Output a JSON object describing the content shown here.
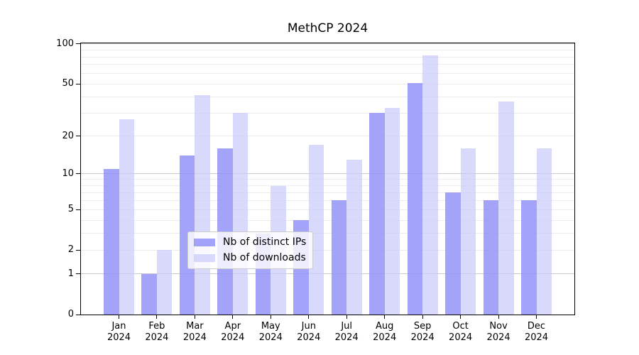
{
  "chart_data": {
    "type": "bar",
    "title": "MethCP 2024",
    "categories": [
      "Jan",
      "Feb",
      "Mar",
      "Apr",
      "May",
      "Jun",
      "Jul",
      "Aug",
      "Sep",
      "Oct",
      "Nov",
      "Dec"
    ],
    "category_year": "2024",
    "series": [
      {
        "name": "Nb of distinct IPs",
        "color": "rgba(147,147,248,0.85)",
        "values": [
          11,
          1,
          14,
          16,
          3,
          4,
          6,
          30,
          51,
          7,
          6,
          6
        ]
      },
      {
        "name": "Nb of downloads",
        "color": "rgba(202,202,250,0.72)",
        "values": [
          27,
          2,
          41,
          30,
          8,
          17,
          13,
          33,
          82,
          16,
          37,
          16
        ]
      }
    ],
    "yscale": "log1p",
    "ylim": [
      0,
      101
    ],
    "ytick_values": [
      0,
      1,
      2,
      5,
      10,
      20,
      50,
      100
    ],
    "ytick_labels": [
      "0",
      "1",
      "2",
      "5",
      "10",
      "20",
      "50",
      "100"
    ],
    "major_gridlines": [
      1,
      10,
      100
    ],
    "minor_gridlines": [
      2,
      3,
      4,
      5,
      6,
      7,
      8,
      9,
      20,
      30,
      40,
      50,
      60,
      70,
      80,
      90
    ],
    "bar_width_fraction": 0.4,
    "legend": {
      "position": "lower-center-inside",
      "entries": [
        "Nb of distinct IPs",
        "Nb of downloads"
      ]
    },
    "colors": {
      "major_grid": "#c9c9c9",
      "minor_grid": "#ececec",
      "spine": "#000000",
      "text": "#000000",
      "background": "#ffffff"
    }
  }
}
